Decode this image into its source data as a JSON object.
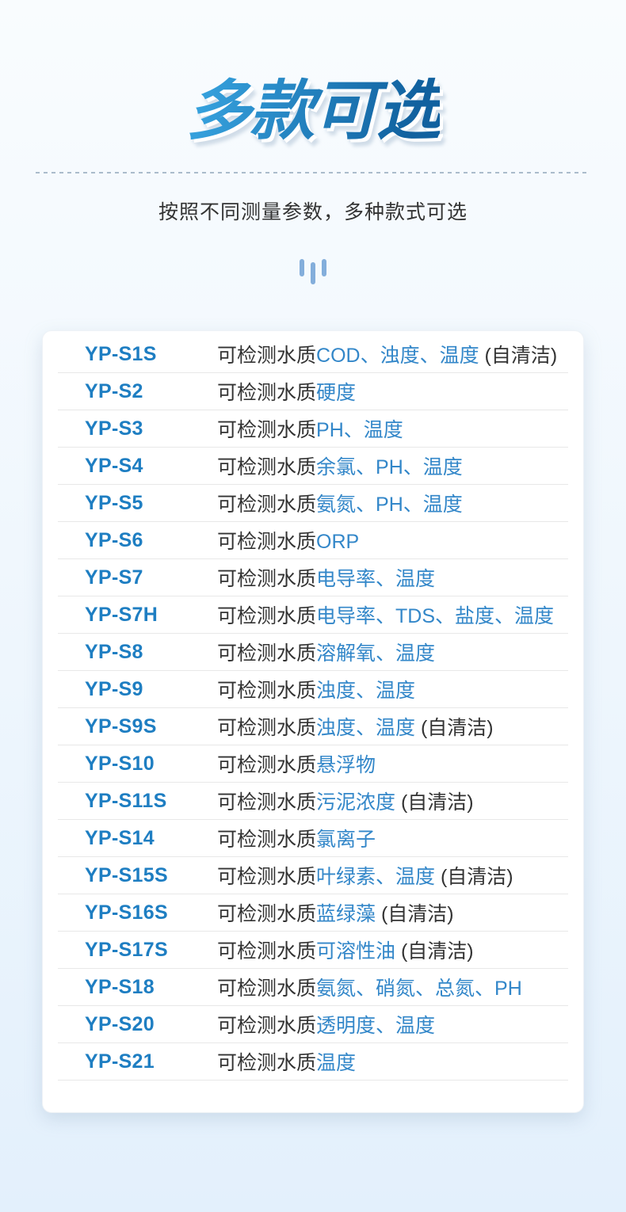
{
  "header": {
    "title": "多款可选",
    "subtitle": "按照不同测量参数，多种款式可选"
  },
  "icons": {
    "decoration": "triple-bars-icon"
  },
  "colors": {
    "title_gradient_start": "#35a0dc",
    "title_gradient_end": "#11619f",
    "model_text": "#1e7ec2",
    "param_text": "#3387c9",
    "body_text": "#333333",
    "background_top": "#f9fcfe",
    "background_bottom": "#e3f0fc",
    "divider": "#90a8ba",
    "icon_bar": "#83aedb"
  },
  "table": {
    "description_prefix": "可检测水质",
    "rows": [
      {
        "model": "YP-S1S",
        "params": "COD、浊度、温度",
        "suffix": " (自清洁)"
      },
      {
        "model": "YP-S2",
        "params": "硬度",
        "suffix": ""
      },
      {
        "model": "YP-S3",
        "params": "PH、温度",
        "suffix": ""
      },
      {
        "model": "YP-S4",
        "params": "余氯、PH、温度",
        "suffix": ""
      },
      {
        "model": "YP-S5",
        "params": "氨氮、PH、温度",
        "suffix": ""
      },
      {
        "model": "YP-S6",
        "params": "ORP",
        "suffix": ""
      },
      {
        "model": "YP-S7",
        "params": "电导率、温度",
        "suffix": ""
      },
      {
        "model": "YP-S7H",
        "params": "电导率、TDS、盐度、温度",
        "suffix": ""
      },
      {
        "model": "YP-S8",
        "params": "溶解氧、温度",
        "suffix": ""
      },
      {
        "model": "YP-S9",
        "params": "浊度、温度",
        "suffix": ""
      },
      {
        "model": "YP-S9S",
        "params": "浊度、温度",
        "suffix": " (自清洁)"
      },
      {
        "model": "YP-S10",
        "params": "悬浮物",
        "suffix": ""
      },
      {
        "model": "YP-S11S",
        "params": "污泥浓度",
        "suffix": " (自清洁)"
      },
      {
        "model": "YP-S14",
        "params": "氯离子",
        "suffix": ""
      },
      {
        "model": "YP-S15S",
        "params": "叶绿素、温度",
        "suffix": " (自清洁)"
      },
      {
        "model": "YP-S16S",
        "params": "蓝绿藻",
        "suffix": " (自清洁)"
      },
      {
        "model": "YP-S17S",
        "params": "可溶性油",
        "suffix": " (自清洁)"
      },
      {
        "model": "YP-S18",
        "params": "氨氮、硝氮、总氮、PH",
        "suffix": ""
      },
      {
        "model": "YP-S20",
        "params": "透明度、温度",
        "suffix": ""
      },
      {
        "model": "YP-S21",
        "params": "温度",
        "suffix": ""
      }
    ]
  }
}
